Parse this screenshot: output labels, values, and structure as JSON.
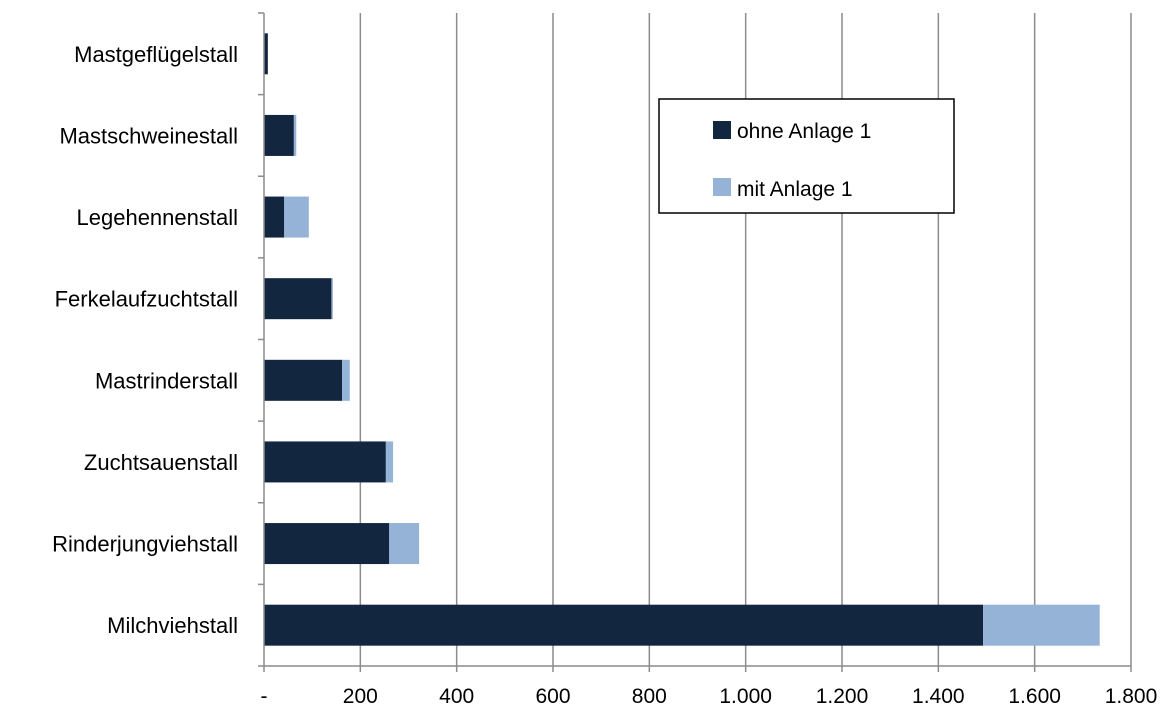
{
  "chart_data": {
    "type": "bar",
    "orientation": "horizontal",
    "stacked": true,
    "categories": [
      "Mastgeflügelstall",
      "Mastschweinestall",
      "Legehennenstall",
      "Ferkelaufzuchtstall",
      "Mastrinderstall",
      "Zuchtsauenstall",
      "Rinderjungviehstall",
      "Milchviehstall"
    ],
    "series": [
      {
        "name": "ohne Anlage 1",
        "color": "#13263F",
        "values": [
          8,
          62,
          42,
          140,
          162,
          253,
          260,
          1493
        ]
      },
      {
        "name": "mit Anlage 1",
        "color": "#95B3D7",
        "values": [
          0,
          5,
          51,
          3,
          16,
          15,
          62,
          242
        ]
      }
    ],
    "xlim": [
      0,
      1800
    ],
    "xticks": [
      0,
      200,
      400,
      600,
      800,
      1000,
      1200,
      1400,
      1600,
      1800
    ],
    "xtick_labels": [
      "-",
      "200",
      "400",
      "600",
      "800",
      "1.000",
      "1.200",
      "1.400",
      "1.600",
      "1.800"
    ],
    "grid": "vertical",
    "legend_position": "top-right",
    "title": "",
    "xlabel": "",
    "ylabel": ""
  }
}
